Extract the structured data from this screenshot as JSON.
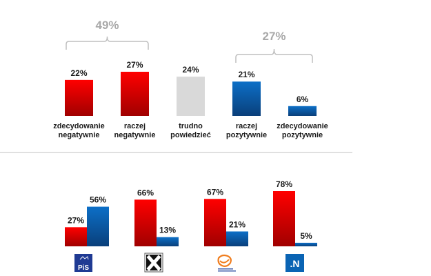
{
  "chart_data": [
    {
      "type": "bar",
      "title": "",
      "xlabel": "",
      "ylabel": "",
      "ylim": [
        0,
        30
      ],
      "grid": false,
      "value_suffix": "%",
      "categories": [
        [
          "zdecydowanie",
          "negatywnie"
        ],
        [
          "raczej",
          "negatywnie"
        ],
        [
          "trudno",
          "powiedzieć"
        ],
        [
          "raczej",
          "pozytywnie"
        ],
        [
          "zdecydowanie",
          "pozytywnie"
        ]
      ],
      "values": [
        22,
        27,
        24,
        21,
        6
      ],
      "value_labels": [
        "22%",
        "27%",
        "24%",
        "21%",
        "6%"
      ],
      "bar_colors": [
        "#e60000",
        "#e60000",
        "#d9d9d9",
        "#0a64b4",
        "#0a64b4"
      ],
      "annotations": [
        {
          "type": "bracket",
          "covers": [
            0,
            1
          ],
          "label": "49%"
        },
        {
          "type": "bracket",
          "covers": [
            3,
            4
          ],
          "label": "27%"
        }
      ]
    },
    {
      "type": "bar",
      "title": "",
      "xlabel": "",
      "ylabel": "",
      "ylim": [
        0,
        80
      ],
      "grid": false,
      "categories": [
        "PiS",
        "Kukiz'15",
        "Platforma Obywatelska",
        "Nowoczesna"
      ],
      "series": [
        {
          "name": "negatywnie",
          "color": "#e60000",
          "values": [
            27,
            66,
            67,
            78
          ],
          "labels": [
            "27%",
            "66%",
            "67%",
            "78%"
          ]
        },
        {
          "name": "pozytywnie",
          "color": "#0a64b4",
          "values": [
            56,
            13,
            21,
            5
          ],
          "labels": [
            "56%",
            "13%",
            "21%",
            "5%"
          ]
        }
      ],
      "category_logos": [
        "pis-logo",
        "kukiz-logo",
        "po-logo",
        "nowoczesna-logo"
      ]
    }
  ],
  "logos": {
    "pis": {
      "text": "PiS",
      "bg": "#1f3a93"
    },
    "kukiz": {
      "text": "X"
    },
    "po": {
      "caption": "Platforma Obywatelska",
      "color": "#f07d1e"
    },
    "nowoczesna": {
      "text": ".N",
      "bg": "#0a64b4"
    }
  },
  "colors": {
    "negative": "#e60000",
    "negative_dark": "#9e0000",
    "positive": "#0a64b4",
    "positive_dark": "#0a3f7a",
    "neutral": "#d9d9d9",
    "bracket": "#bfbfbf",
    "divider": "#d9d9d9"
  }
}
